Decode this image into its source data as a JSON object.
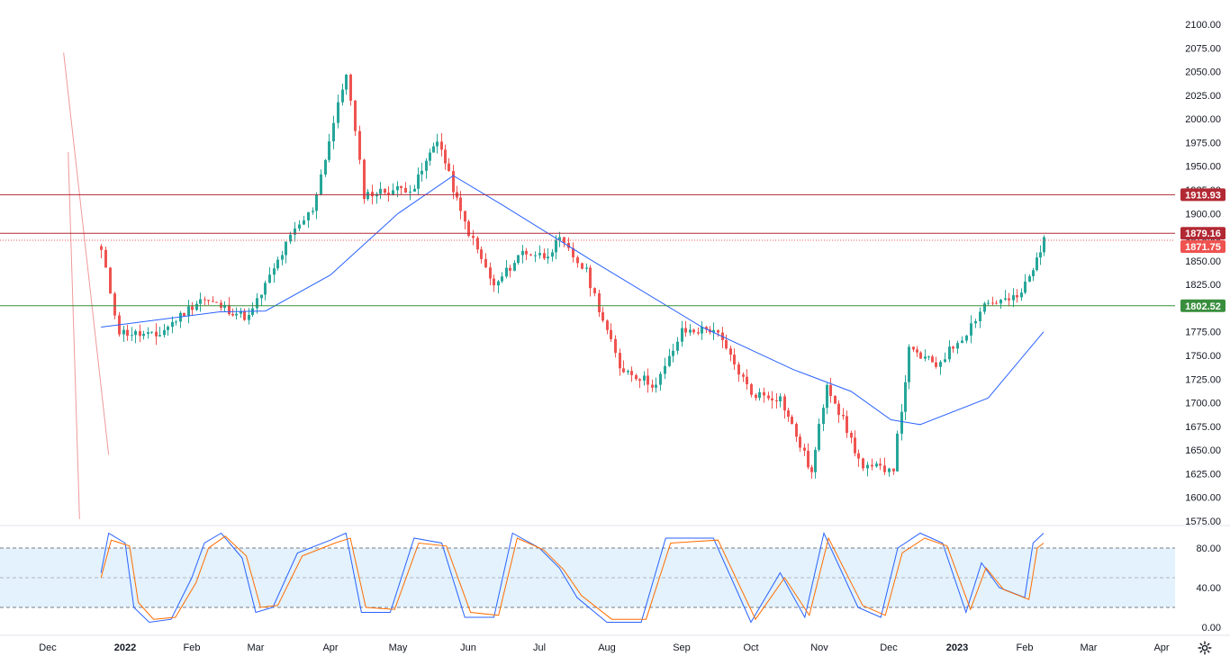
{
  "chart_data": [
    {
      "type": "candlestick",
      "panel": "price",
      "ylim": [
        1575,
        2100
      ],
      "y_ticks": [
        "1575.00",
        "1600.00",
        "1625.00",
        "1650.00",
        "1675.00",
        "1700.00",
        "1725.00",
        "1750.00",
        "1775.00",
        "1800.00",
        "1825.00",
        "1850.00",
        "1875.00",
        "1900.00",
        "1925.00",
        "1950.00",
        "1975.00",
        "2000.00",
        "2025.00",
        "2050.00",
        "2075.00",
        "2100.00"
      ],
      "x_ticks": [
        "Dec",
        "2022",
        "Feb",
        "Mar",
        "Apr",
        "May",
        "Jun",
        "Jul",
        "Aug",
        "Sep",
        "Oct",
        "Nov",
        "Dec",
        "2023",
        "Feb",
        "Mar",
        "Apr"
      ],
      "horizontal_levels": [
        {
          "value": 1919.93,
          "label": "1919.93",
          "color": "#b22833"
        },
        {
          "value": 1879.16,
          "label": "1879.16",
          "color": "#b22833"
        },
        {
          "value": 1871.75,
          "label": "1871.75",
          "color": "#ef5350"
        },
        {
          "value": 1802.52,
          "label": "1802.52",
          "color": "#388e3c"
        }
      ],
      "close_anchors": [
        {
          "date": "Nov 22",
          "close": 1860
        },
        {
          "date": "Nov 29",
          "close": 1775
        },
        {
          "date": "Dec 15",
          "close": 1770
        },
        {
          "date": "Jan 5",
          "close": 1810
        },
        {
          "date": "Jan 28",
          "close": 1790
        },
        {
          "date": "Feb 15",
          "close": 1875
        },
        {
          "date": "Feb 24",
          "close": 1905
        },
        {
          "date": "Mar 8",
          "close": 2050
        },
        {
          "date": "Mar 16",
          "close": 1920
        },
        {
          "date": "Mar 29",
          "close": 1925
        },
        {
          "date": "Apr 8",
          "close": 1928
        },
        {
          "date": "Apr 18",
          "close": 1980
        },
        {
          "date": "Apr 28",
          "close": 1900
        },
        {
          "date": "May 12",
          "close": 1822
        },
        {
          "date": "May 24",
          "close": 1860
        },
        {
          "date": "Jun 3",
          "close": 1855
        },
        {
          "date": "Jun 10",
          "close": 1871
        },
        {
          "date": "Jun 22",
          "close": 1838
        },
        {
          "date": "Jul 6",
          "close": 1738
        },
        {
          "date": "Jul 21",
          "close": 1718
        },
        {
          "date": "Aug 1",
          "close": 1775
        },
        {
          "date": "Aug 15",
          "close": 1778
        },
        {
          "date": "Sep 1",
          "close": 1710
        },
        {
          "date": "Sep 14",
          "close": 1705
        },
        {
          "date": "Sep 28",
          "close": 1625
        },
        {
          "date": "Oct 4",
          "close": 1722
        },
        {
          "date": "Oct 20",
          "close": 1630
        },
        {
          "date": "Nov 3",
          "close": 1632
        },
        {
          "date": "Nov 10",
          "close": 1755
        },
        {
          "date": "Nov 22",
          "close": 1740
        },
        {
          "date": "Dec 5",
          "close": 1775
        },
        {
          "date": "Dec 13",
          "close": 1805
        },
        {
          "date": "Dec 28",
          "close": 1810
        },
        {
          "date": "Jan 5",
          "close": 1840
        },
        {
          "date": "Jan 10",
          "close": 1875
        }
      ],
      "moving_average": [
        {
          "date": "Nov 22",
          "value": 1780
        },
        {
          "date": "Jan 14",
          "value": 1796
        },
        {
          "date": "Feb 5",
          "value": 1797
        },
        {
          "date": "Mar 1",
          "value": 1835
        },
        {
          "date": "Apr 1",
          "value": 1900
        },
        {
          "date": "Apr 25",
          "value": 1940
        },
        {
          "date": "May 15",
          "value": 1910
        },
        {
          "date": "Jun 25",
          "value": 1850
        },
        {
          "date": "Aug 10",
          "value": 1780
        },
        {
          "date": "Sep 20",
          "value": 1735
        },
        {
          "date": "Oct 15",
          "value": 1712
        },
        {
          "date": "Nov 2",
          "value": 1682
        },
        {
          "date": "Nov 15",
          "value": 1677
        },
        {
          "date": "Dec 15",
          "value": 1705
        },
        {
          "date": "Jan 10",
          "value": 1775
        }
      ],
      "trend_channel": {
        "upper": [
          {
            "date": "Mar 8",
            "value": 2070
          },
          {
            "date": "Nov 25",
            "value": 1645
          }
        ],
        "lower": [
          {
            "date": "Jan 10",
            "value": 1965
          },
          {
            "date": "Oct 15",
            "value": 1577
          }
        ]
      },
      "colors": {
        "up": "#26a69a",
        "down": "#ef5350",
        "ma": "#2962ff",
        "channel": "#ef9a9a",
        "axis_text": "#131722"
      }
    },
    {
      "type": "line",
      "panel": "stochastic",
      "ylim": [
        0,
        100
      ],
      "y_ticks": [
        "0.00",
        "40.00",
        "80.00"
      ],
      "bands": {
        "upper": 80,
        "middle": 50,
        "lower": 20
      },
      "series": [
        {
          "key": "k",
          "color": "#2962ff",
          "values": [
            {
              "date": "Nov 22",
              "value": 55
            },
            {
              "date": "Nov 25",
              "value": 95
            },
            {
              "date": "Dec 1",
              "value": 85
            },
            {
              "date": "Dec 5",
              "value": 20
            },
            {
              "date": "Dec 12",
              "value": 5
            },
            {
              "date": "Dec 22",
              "value": 8
            },
            {
              "date": "Jan 1",
              "value": 50
            },
            {
              "date": "Jan 7",
              "value": 85
            },
            {
              "date": "Jan 15",
              "value": 95
            },
            {
              "date": "Jan 25",
              "value": 70
            },
            {
              "date": "Feb 1",
              "value": 15
            },
            {
              "date": "Feb 8",
              "value": 20
            },
            {
              "date": "Feb 18",
              "value": 75
            },
            {
              "date": "Mar 1",
              "value": 88
            },
            {
              "date": "Mar 8",
              "value": 95
            },
            {
              "date": "Mar 15",
              "value": 15
            },
            {
              "date": "Mar 28",
              "value": 15
            },
            {
              "date": "Apr 8",
              "value": 90
            },
            {
              "date": "Apr 20",
              "value": 85
            },
            {
              "date": "Apr 30",
              "value": 10
            },
            {
              "date": "May 12",
              "value": 10
            },
            {
              "date": "May 20",
              "value": 95
            },
            {
              "date": "Jun 1",
              "value": 80
            },
            {
              "date": "Jun 10",
              "value": 60
            },
            {
              "date": "Jun 18",
              "value": 30
            },
            {
              "date": "Jul 1",
              "value": 5
            },
            {
              "date": "Jul 15",
              "value": 5
            },
            {
              "date": "Jul 25",
              "value": 90
            },
            {
              "date": "Aug 15",
              "value": 90
            },
            {
              "date": "Sep 1",
              "value": 5
            },
            {
              "date": "Sep 14",
              "value": 55
            },
            {
              "date": "Sep 25",
              "value": 10
            },
            {
              "date": "Oct 3",
              "value": 95
            },
            {
              "date": "Oct 18",
              "value": 20
            },
            {
              "date": "Oct 28",
              "value": 10
            },
            {
              "date": "Nov 5",
              "value": 80
            },
            {
              "date": "Nov 15",
              "value": 95
            },
            {
              "date": "Nov 25",
              "value": 85
            },
            {
              "date": "Dec 5",
              "value": 15
            },
            {
              "date": "Dec 12",
              "value": 65
            },
            {
              "date": "Dec 20",
              "value": 40
            },
            {
              "date": "Jan 1",
              "value": 30
            },
            {
              "date": "Jan 5",
              "value": 85
            },
            {
              "date": "Jan 10",
              "value": 95
            }
          ]
        },
        {
          "key": "d",
          "color": "#ff6d00",
          "values": [
            {
              "date": "Nov 22",
              "value": 50
            },
            {
              "date": "Nov 26",
              "value": 88
            },
            {
              "date": "Dec 3",
              "value": 82
            },
            {
              "date": "Dec 7",
              "value": 25
            },
            {
              "date": "Dec 14",
              "value": 8
            },
            {
              "date": "Dec 24",
              "value": 10
            },
            {
              "date": "Jan 3",
              "value": 45
            },
            {
              "date": "Jan 9",
              "value": 80
            },
            {
              "date": "Jan 17",
              "value": 92
            },
            {
              "date": "Jan 27",
              "value": 72
            },
            {
              "date": "Feb 3",
              "value": 20
            },
            {
              "date": "Feb 10",
              "value": 22
            },
            {
              "date": "Feb 20",
              "value": 72
            },
            {
              "date": "Mar 3",
              "value": 85
            },
            {
              "date": "Mar 10",
              "value": 90
            },
            {
              "date": "Mar 17",
              "value": 20
            },
            {
              "date": "Mar 30",
              "value": 18
            },
            {
              "date": "Apr 10",
              "value": 85
            },
            {
              "date": "Apr 22",
              "value": 82
            },
            {
              "date": "May 2",
              "value": 15
            },
            {
              "date": "May 14",
              "value": 12
            },
            {
              "date": "May 22",
              "value": 90
            },
            {
              "date": "Jun 3",
              "value": 78
            },
            {
              "date": "Jun 12",
              "value": 58
            },
            {
              "date": "Jun 20",
              "value": 32
            },
            {
              "date": "Jul 3",
              "value": 8
            },
            {
              "date": "Jul 17",
              "value": 8
            },
            {
              "date": "Jul 27",
              "value": 85
            },
            {
              "date": "Aug 17",
              "value": 88
            },
            {
              "date": "Sep 3",
              "value": 8
            },
            {
              "date": "Sep 16",
              "value": 50
            },
            {
              "date": "Sep 27",
              "value": 12
            },
            {
              "date": "Oct 5",
              "value": 90
            },
            {
              "date": "Oct 20",
              "value": 22
            },
            {
              "date": "Oct 30",
              "value": 12
            },
            {
              "date": "Nov 7",
              "value": 75
            },
            {
              "date": "Nov 17",
              "value": 90
            },
            {
              "date": "Nov 27",
              "value": 82
            },
            {
              "date": "Dec 7",
              "value": 18
            },
            {
              "date": "Dec 14",
              "value": 60
            },
            {
              "date": "Dec 22",
              "value": 38
            },
            {
              "date": "Jan 3",
              "value": 28
            },
            {
              "date": "Jan 7",
              "value": 80
            },
            {
              "date": "Jan 10",
              "value": 85
            }
          ]
        }
      ]
    }
  ]
}
